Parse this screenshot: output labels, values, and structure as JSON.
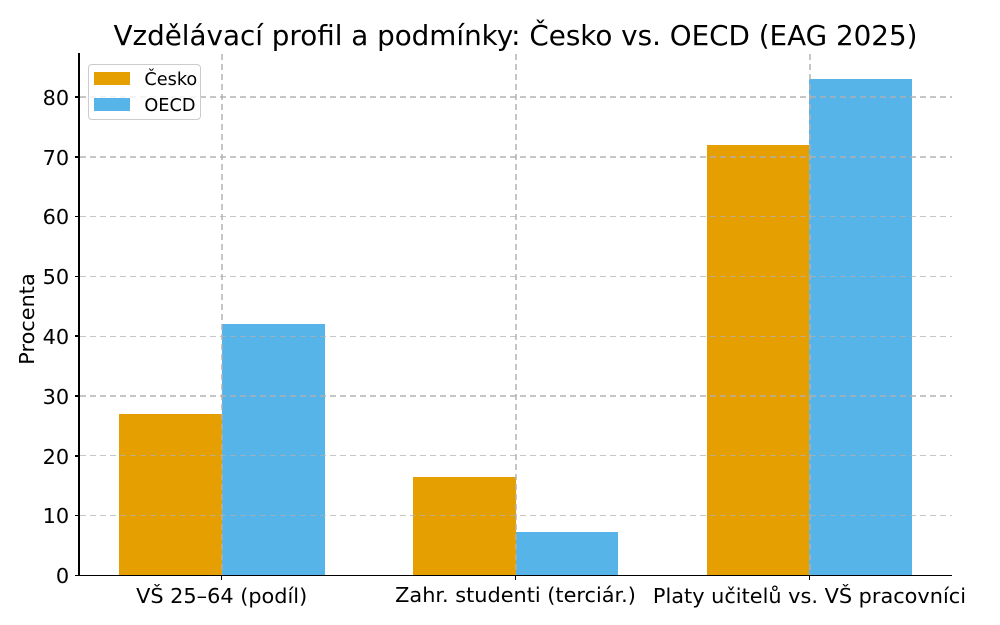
{
  "chart_data": {
    "type": "bar",
    "title": "Vzdělávací profil a podmínky: Česko vs. OECD (EAG 2025)",
    "xlabel": "",
    "ylabel": "Procenta",
    "categories": [
      "VŠ 25–64 (podíl)",
      "Zahr. studenti (terciár.)",
      "Platy učitelů vs. VŠ pracovníci"
    ],
    "series": [
      {
        "name": "Česko",
        "color": "#E69F00",
        "values": [
          27,
          16.5,
          72
        ]
      },
      {
        "name": "OECD",
        "color": "#56B4E9",
        "values": [
          42,
          7.3,
          83
        ]
      }
    ],
    "yticks": [
      0,
      10,
      20,
      30,
      40,
      50,
      60,
      70,
      80
    ],
    "ylim": [
      0,
      87.15
    ],
    "xlim": [
      -0.485,
      2.485
    ],
    "bar_width": 0.35,
    "grid": "dashed gridlines at y ticks and category centers, drawn above bars",
    "legend_position": "upper left"
  },
  "colors": {
    "cesko": "#E69F00",
    "oecd": "#56B4E9",
    "text": "#000000",
    "axis": "#000000",
    "grid": "#b0b0b0",
    "legend_border": "#cccccc",
    "background": "#ffffff"
  }
}
